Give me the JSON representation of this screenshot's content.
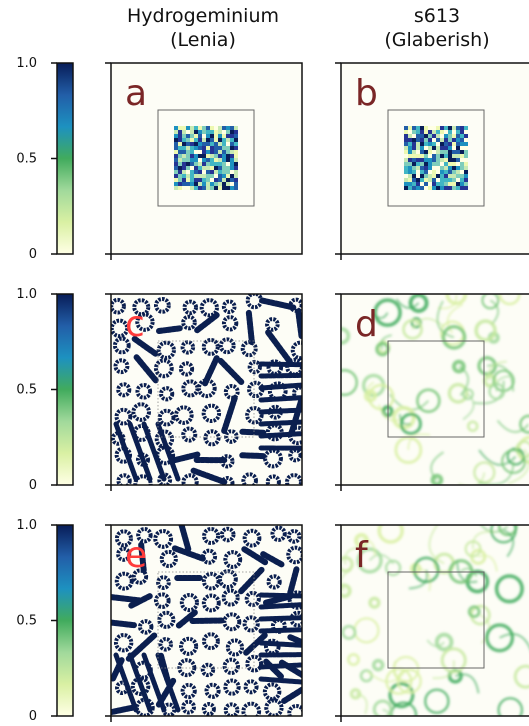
{
  "chart_data": {
    "type": "heatmap",
    "column_titles": [
      {
        "line1": "Hydrogeminium",
        "line2": "(Lenia)"
      },
      {
        "line1": "s613",
        "line2": "(Glaberish)"
      }
    ],
    "colorbar": {
      "colormap": "YlGnBu",
      "ticks": [
        "0",
        "0.5",
        "1.0"
      ],
      "range": [
        0,
        1
      ],
      "colors": [
        "#ffffe5",
        "#d9f0a3",
        "#a1d99b",
        "#41ab5d",
        "#1d91c0",
        "#225ea8",
        "#081d58"
      ]
    },
    "panels": [
      {
        "letter": "a",
        "row": 1,
        "col": 1,
        "pattern": "initial-noise-square"
      },
      {
        "letter": "b",
        "row": 1,
        "col": 2,
        "pattern": "initial-noise-square"
      },
      {
        "letter": "c",
        "row": 2,
        "col": 1,
        "pattern": "hydrogeminium-blobs"
      },
      {
        "letter": "d",
        "row": 2,
        "col": 2,
        "pattern": "glaberish-fluid"
      },
      {
        "letter": "e",
        "row": 3,
        "col": 1,
        "pattern": "hydrogeminium-blobs"
      },
      {
        "letter": "f",
        "row": 3,
        "col": 2,
        "pattern": "glaberish-fluid"
      }
    ],
    "letter_colors": {
      "dark": "#7a2626",
      "bright": "#ff3b3b"
    }
  }
}
